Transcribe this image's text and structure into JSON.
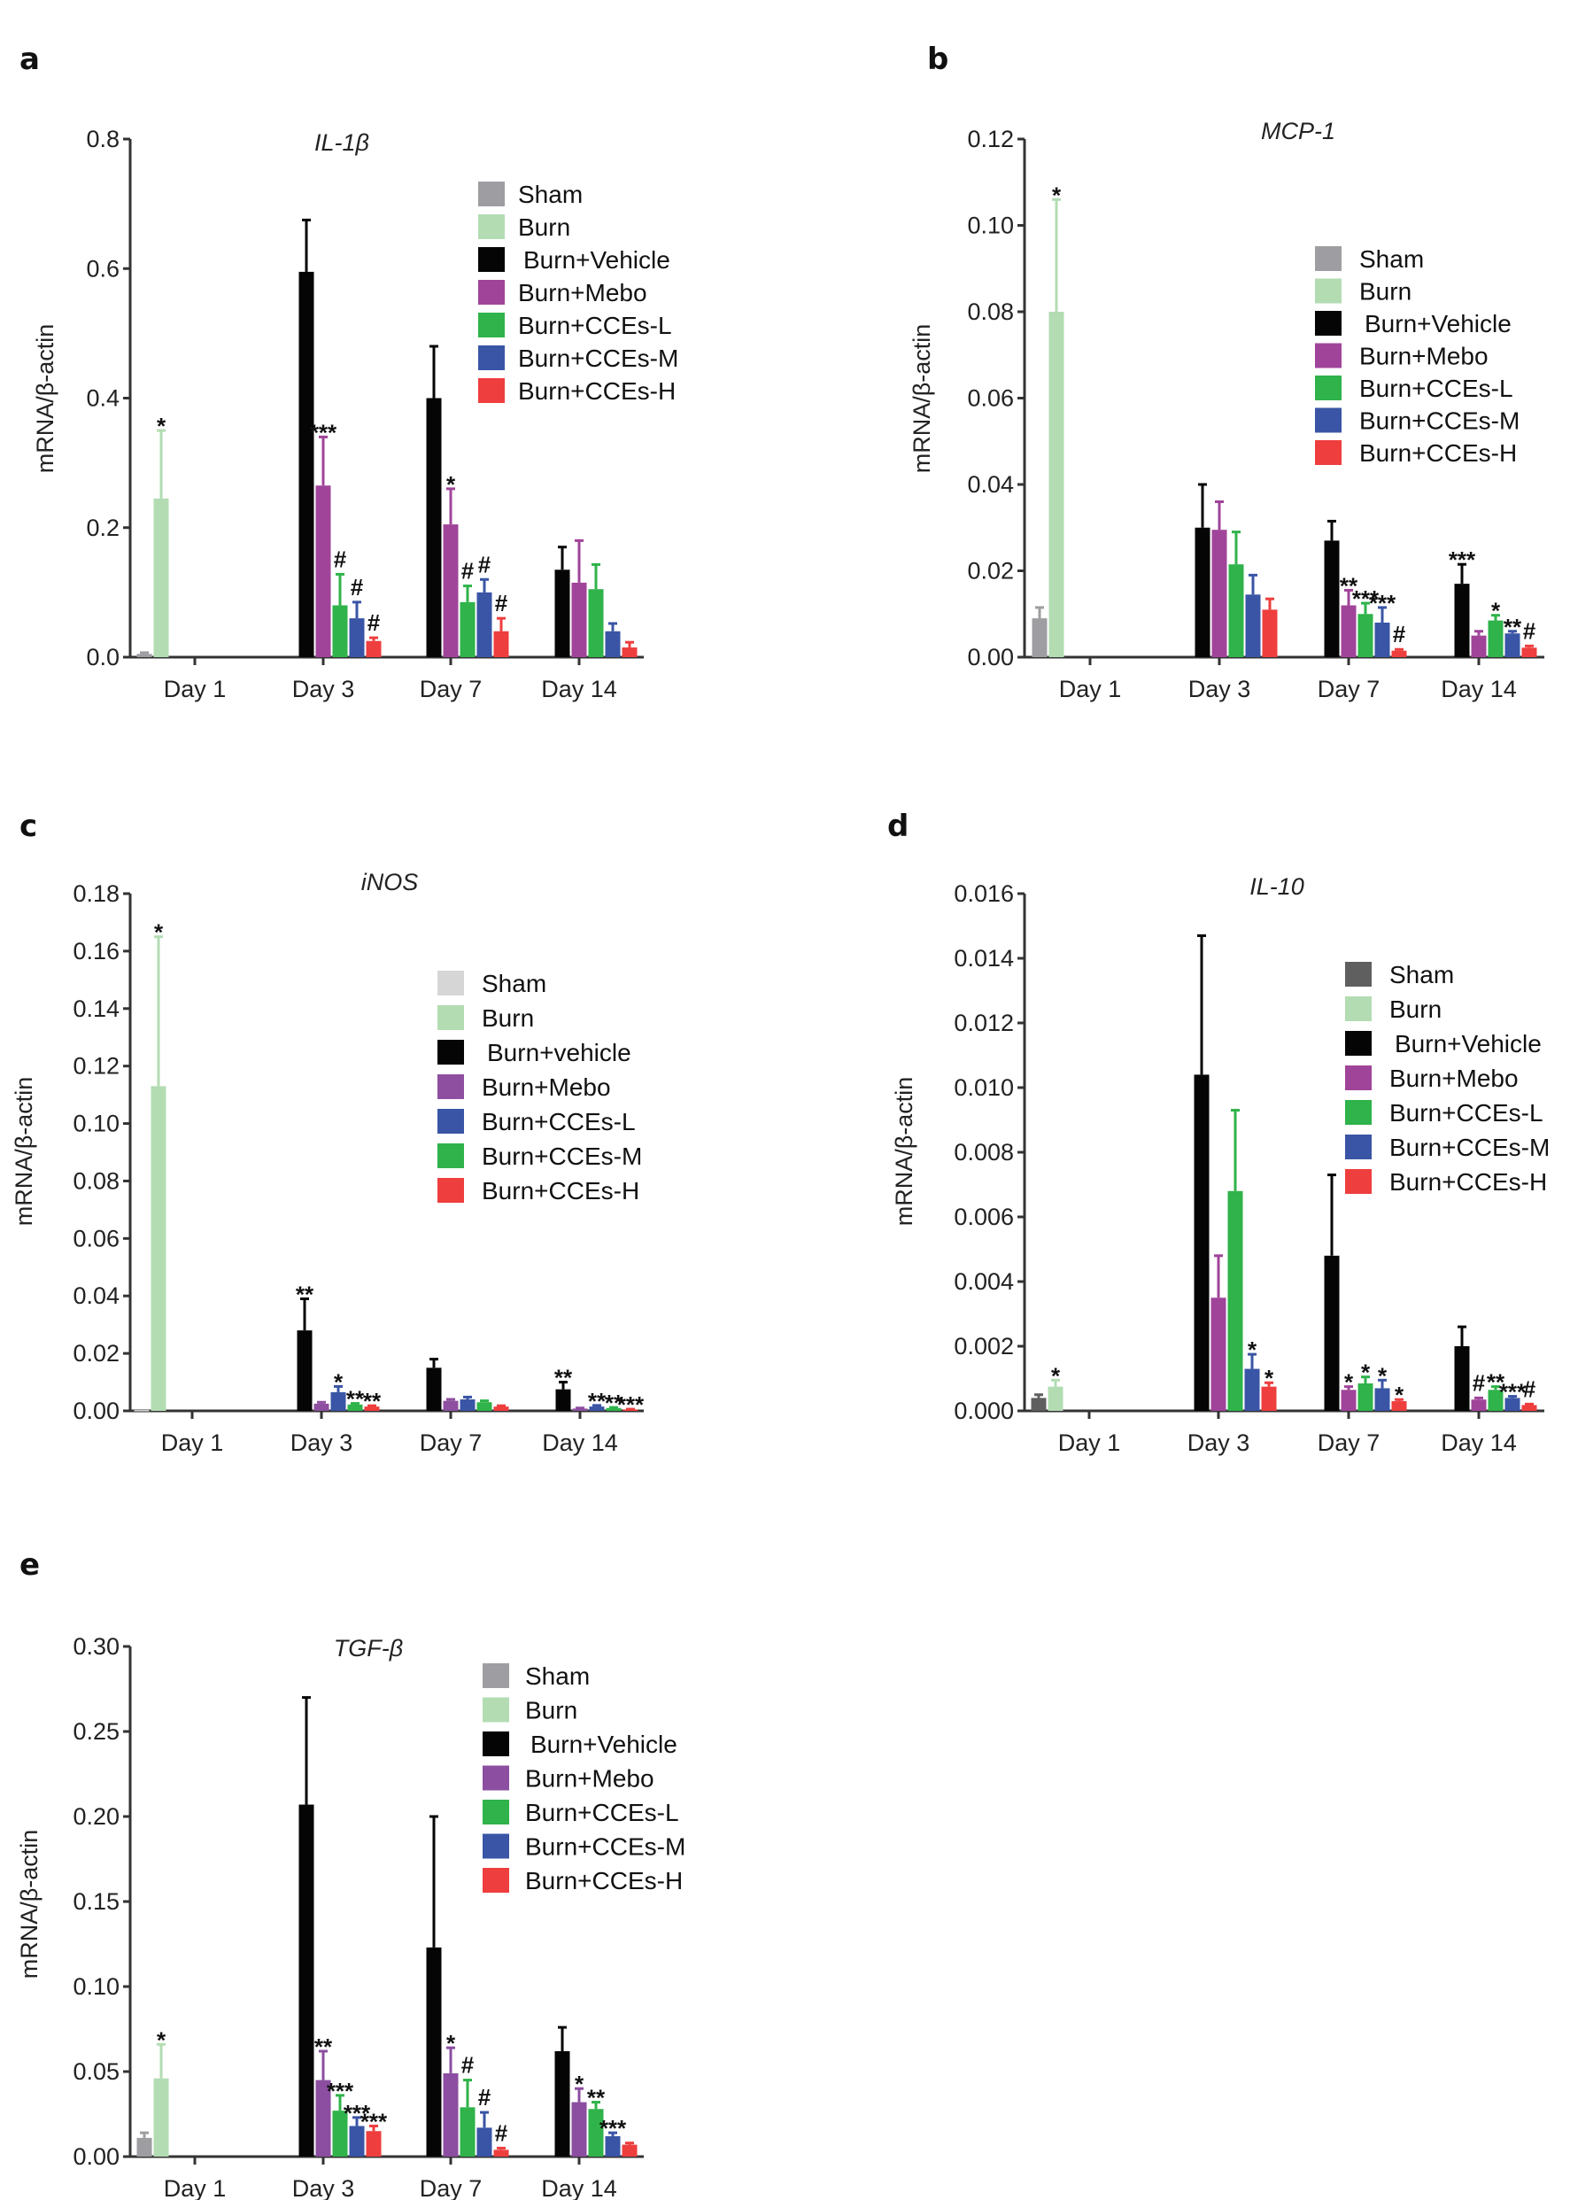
{
  "figure": {
    "panel_labels": [
      "a",
      "b",
      "c",
      "d",
      "e"
    ]
  },
  "chart_data": [
    {
      "id": "a",
      "type": "bar",
      "title": "IL-1β",
      "xlabel": "",
      "ylabel": "mRNA/β-actin",
      "ylim": [
        0,
        0.8
      ],
      "yticks": [
        0.0,
        0.2,
        0.4,
        0.6,
        0.8
      ],
      "ytick_labels": [
        "0.0",
        "0.2",
        "0.4",
        "0.6",
        "0.8"
      ],
      "categories": [
        "Day 1",
        "Day 3",
        "Day 7",
        "Day 14"
      ],
      "legend_position": "top-right",
      "series": [
        {
          "name": "Sham",
          "color": "#9e9ea2",
          "values": [
            0.005,
            null,
            null,
            null
          ],
          "errors": [
            0.002,
            null,
            null,
            null
          ],
          "annotations": [
            "",
            "",
            "",
            ""
          ]
        },
        {
          "name": "Burn",
          "color": "#b3dcb3",
          "values": [
            0.245,
            null,
            null,
            null
          ],
          "errors": [
            0.105,
            null,
            null,
            null
          ],
          "annotations": [
            "*",
            "",
            "",
            ""
          ]
        },
        {
          "name": "Burn+Vehicle",
          "color": "#050505",
          "values": [
            null,
            0.595,
            0.4,
            0.135
          ],
          "errors": [
            null,
            0.08,
            0.08,
            0.035
          ],
          "annotations": [
            "",
            "",
            "",
            ""
          ]
        },
        {
          "name": "Burn+Mebo",
          "color": "#a0449a",
          "values": [
            null,
            0.265,
            0.205,
            0.115
          ],
          "errors": [
            null,
            0.075,
            0.055,
            0.065
          ],
          "annotations": [
            "",
            "***",
            "*",
            ""
          ]
        },
        {
          "name": "Burn+CCEs-L",
          "color": "#2fb34a",
          "values": [
            null,
            0.08,
            0.085,
            0.105
          ],
          "errors": [
            null,
            0.048,
            0.025,
            0.038
          ],
          "annotations": [
            "",
            "#",
            "#",
            ""
          ]
        },
        {
          "name": "Burn+CCEs-M",
          "color": "#3a55a5",
          "values": [
            null,
            0.06,
            0.1,
            0.04
          ],
          "errors": [
            null,
            0.025,
            0.02,
            0.012
          ],
          "annotations": [
            "",
            "#",
            "#",
            ""
          ]
        },
        {
          "name": "Burn+CCEs-H",
          "color": "#ee3e3e",
          "values": [
            null,
            0.025,
            0.04,
            0.015
          ],
          "errors": [
            null,
            0.005,
            0.02,
            0.008
          ],
          "annotations": [
            "",
            "#",
            "#",
            ""
          ]
        }
      ]
    },
    {
      "id": "b",
      "type": "bar",
      "title": "MCP-1",
      "xlabel": "",
      "ylabel": "mRNA/β-actin",
      "ylim": [
        0,
        0.12
      ],
      "yticks": [
        0.0,
        0.02,
        0.04,
        0.06,
        0.08,
        0.1,
        0.12
      ],
      "ytick_labels": [
        "0.00",
        "0.02",
        "0.04",
        "0.06",
        "0.08",
        "0.10",
        "0.12"
      ],
      "categories": [
        "Day 1",
        "Day 3",
        "Day 7",
        "Day 14"
      ],
      "legend_position": "right",
      "series": [
        {
          "name": "Sham",
          "color": "#9e9ea2",
          "values": [
            0.009,
            null,
            null,
            null
          ],
          "errors": [
            0.0025,
            null,
            null,
            null
          ],
          "annotations": [
            "",
            "",
            "",
            ""
          ]
        },
        {
          "name": "Burn",
          "color": "#b3dcb3",
          "values": [
            0.08,
            null,
            null,
            null
          ],
          "errors": [
            0.026,
            null,
            null,
            null
          ],
          "annotations": [
            "*",
            "",
            "",
            ""
          ]
        },
        {
          "name": "Burn+Vehicle",
          "color": "#050505",
          "values": [
            null,
            0.03,
            0.027,
            0.017
          ],
          "errors": [
            null,
            0.01,
            0.0045,
            0.0045
          ],
          "annotations": [
            "",
            "",
            "",
            "***"
          ]
        },
        {
          "name": "Burn+Mebo",
          "color": "#a0449a",
          "values": [
            null,
            0.0295,
            0.012,
            0.005
          ],
          "errors": [
            null,
            0.0065,
            0.0035,
            0.001
          ],
          "annotations": [
            "",
            "",
            "**",
            ""
          ]
        },
        {
          "name": "Burn+CCEs-L",
          "color": "#2fb34a",
          "values": [
            null,
            0.0215,
            0.01,
            0.0085
          ],
          "errors": [
            null,
            0.0075,
            0.0025,
            0.0012
          ],
          "annotations": [
            "",
            "",
            "***",
            "*"
          ]
        },
        {
          "name": "Burn+CCEs-M",
          "color": "#3a55a5",
          "values": [
            null,
            0.0145,
            0.008,
            0.0055
          ],
          "errors": [
            null,
            0.0045,
            0.0035,
            0.0005
          ],
          "annotations": [
            "",
            "",
            "***",
            "**"
          ]
        },
        {
          "name": "Burn+CCEs-H",
          "color": "#ee3e3e",
          "values": [
            null,
            0.011,
            0.0015,
            0.0022
          ],
          "errors": [
            null,
            0.0025,
            0.0003,
            0.0004
          ],
          "annotations": [
            "",
            "",
            "#",
            "#"
          ]
        }
      ]
    },
    {
      "id": "c",
      "type": "bar",
      "title": "iNOS",
      "xlabel": "",
      "ylabel": "mRNA/β-actin",
      "ylim": [
        0,
        0.18
      ],
      "yticks": [
        0.0,
        0.02,
        0.04,
        0.06,
        0.08,
        0.1,
        0.12,
        0.14,
        0.16,
        0.18
      ],
      "ytick_labels": [
        "0.00",
        "0.02",
        "0.04",
        "0.06",
        "0.08",
        "0.10",
        "0.12",
        "0.14",
        "0.16",
        "0.18"
      ],
      "categories": [
        "Day 1",
        "Day 3",
        "Day 7",
        "Day 14"
      ],
      "legend_position": "top-right",
      "series": [
        {
          "name": "Sham",
          "color": "#d6d6d6",
          "values": [
            0.0003,
            null,
            null,
            null
          ],
          "errors": [
            0.0,
            null,
            null,
            null
          ],
          "annotations": [
            "",
            "",
            "",
            ""
          ]
        },
        {
          "name": "Burn",
          "color": "#b3dcb3",
          "values": [
            0.113,
            null,
            null,
            null
          ],
          "errors": [
            0.052,
            null,
            null,
            null
          ],
          "annotations": [
            "*",
            "",
            "",
            ""
          ]
        },
        {
          "name": "Burn+vehicle",
          "color": "#050505",
          "values": [
            null,
            0.028,
            0.015,
            0.0075
          ],
          "errors": [
            null,
            0.011,
            0.003,
            0.0025
          ],
          "annotations": [
            "",
            "**",
            "",
            "**"
          ]
        },
        {
          "name": "Burn+Mebo",
          "color": "#8e4fa0",
          "values": [
            null,
            0.0025,
            0.0035,
            0.0008
          ],
          "errors": [
            null,
            0.0005,
            0.0005,
            0.0002
          ],
          "annotations": [
            "",
            "",
            "",
            ""
          ]
        },
        {
          "name": "Burn+CCEs-L",
          "color": "#3a55a5",
          "values": [
            null,
            0.0065,
            0.004,
            0.0015
          ],
          "errors": [
            null,
            0.002,
            0.0008,
            0.0004
          ],
          "annotations": [
            "",
            "*",
            "",
            "**"
          ]
        },
        {
          "name": "Burn+CCEs-M",
          "color": "#2fb34a",
          "values": [
            null,
            0.0022,
            0.003,
            0.001
          ],
          "errors": [
            null,
            0.0004,
            0.0005,
            0.0002
          ],
          "annotations": [
            "",
            "**",
            "",
            "**"
          ]
        },
        {
          "name": "Burn+CCEs-H",
          "color": "#ee3e3e",
          "values": [
            null,
            0.0015,
            0.0015,
            0.0005
          ],
          "errors": [
            null,
            0.0003,
            0.0003,
            0.0001
          ],
          "annotations": [
            "",
            "**",
            "",
            "***"
          ]
        }
      ]
    },
    {
      "id": "d",
      "type": "bar",
      "title": "IL-10",
      "xlabel": "",
      "ylabel": "mRNA/β-actin",
      "ylim": [
        0,
        0.016
      ],
      "yticks": [
        0.0,
        0.002,
        0.004,
        0.006,
        0.008,
        0.01,
        0.012,
        0.014,
        0.016
      ],
      "ytick_labels": [
        "0.000",
        "0.002",
        "0.004",
        "0.006",
        "0.008",
        "0.010",
        "0.012",
        "0.014",
        "0.016"
      ],
      "categories": [
        "Day 1",
        "Day 3",
        "Day 7",
        "Day 14"
      ],
      "legend_position": "top-right",
      "series": [
        {
          "name": "Sham",
          "color": "#5f5f5f",
          "values": [
            0.0004,
            null,
            null,
            null
          ],
          "errors": [
            0.0001,
            null,
            null,
            null
          ],
          "annotations": [
            "",
            "",
            "",
            ""
          ]
        },
        {
          "name": "Burn",
          "color": "#b3dcb3",
          "values": [
            0.00075,
            null,
            null,
            null
          ],
          "errors": [
            0.0002,
            null,
            null,
            null
          ],
          "annotations": [
            "*",
            "",
            "",
            ""
          ]
        },
        {
          "name": "Burn+Vehicle",
          "color": "#050505",
          "values": [
            null,
            0.0104,
            0.0048,
            0.002
          ],
          "errors": [
            null,
            0.0043,
            0.0025,
            0.0006
          ],
          "annotations": [
            "",
            "",
            "",
            ""
          ]
        },
        {
          "name": "Burn+Mebo",
          "color": "#a0449a",
          "values": [
            null,
            0.0035,
            0.00065,
            0.00035
          ],
          "errors": [
            null,
            0.0013,
            0.0001,
            5e-05
          ],
          "annotations": [
            "",
            "",
            "*",
            "#"
          ]
        },
        {
          "name": "Burn+CCEs-L",
          "color": "#2fb34a",
          "values": [
            null,
            0.0068,
            0.00085,
            0.00065
          ],
          "errors": [
            null,
            0.0025,
            0.0002,
            0.0001
          ],
          "annotations": [
            "",
            "",
            "*",
            "**"
          ]
        },
        {
          "name": "Burn+CCEs-M",
          "color": "#3a55a5",
          "values": [
            null,
            0.0013,
            0.0007,
            0.0004
          ],
          "errors": [
            null,
            0.00045,
            0.00025,
            5e-05
          ],
          "annotations": [
            "",
            "*",
            "*",
            "***"
          ]
        },
        {
          "name": "Burn+CCEs-H",
          "color": "#ee3e3e",
          "values": [
            null,
            0.00075,
            0.0003,
            0.00018
          ],
          "errors": [
            null,
            0.00012,
            5e-05,
            3e-05
          ],
          "annotations": [
            "",
            "*",
            "*",
            "#"
          ]
        }
      ]
    },
    {
      "id": "e",
      "type": "bar",
      "title": "TGF-β",
      "xlabel": "",
      "ylabel": "mRNA/β-actin",
      "ylim": [
        0,
        0.3
      ],
      "yticks": [
        0.0,
        0.05,
        0.1,
        0.15,
        0.2,
        0.25,
        0.3
      ],
      "ytick_labels": [
        "0.00",
        "0.05",
        "0.10",
        "0.15",
        "0.20",
        "0.25",
        "0.30"
      ],
      "categories": [
        "Day 1",
        "Day 3",
        "Day 7",
        "Day 14"
      ],
      "legend_position": "top-right",
      "series": [
        {
          "name": "Sham",
          "color": "#9e9ea2",
          "values": [
            0.011,
            null,
            null,
            null
          ],
          "errors": [
            0.003,
            null,
            null,
            null
          ],
          "annotations": [
            "",
            "",
            "",
            ""
          ]
        },
        {
          "name": "Burn",
          "color": "#b3dcb3",
          "values": [
            0.046,
            null,
            null,
            null
          ],
          "errors": [
            0.02,
            null,
            null,
            null
          ],
          "annotations": [
            "*",
            "",
            "",
            ""
          ]
        },
        {
          "name": "Burn+Vehicle",
          "color": "#050505",
          "values": [
            null,
            0.207,
            0.123,
            0.062
          ],
          "errors": [
            null,
            0.063,
            0.077,
            0.014
          ],
          "annotations": [
            "",
            "",
            "",
            ""
          ]
        },
        {
          "name": "Burn+Mebo",
          "color": "#8b4ea0",
          "values": [
            null,
            0.045,
            0.049,
            0.032
          ],
          "errors": [
            null,
            0.017,
            0.015,
            0.008
          ],
          "annotations": [
            "",
            "**",
            "*",
            "*"
          ]
        },
        {
          "name": "Burn+CCEs-L",
          "color": "#2fb34a",
          "values": [
            null,
            0.027,
            0.029,
            0.028
          ],
          "errors": [
            null,
            0.009,
            0.016,
            0.004
          ],
          "annotations": [
            "",
            "***",
            "#",
            "**"
          ]
        },
        {
          "name": "Burn+CCEs-M",
          "color": "#3a55a5",
          "values": [
            null,
            0.018,
            0.017,
            0.012
          ],
          "errors": [
            null,
            0.005,
            0.009,
            0.002
          ],
          "annotations": [
            "",
            "***",
            "#",
            "***"
          ]
        },
        {
          "name": "Burn+CCEs-H",
          "color": "#ee3e3e",
          "values": [
            null,
            0.015,
            0.004,
            0.007
          ],
          "errors": [
            null,
            0.003,
            0.001,
            0.001
          ],
          "annotations": [
            "",
            "***",
            "#",
            ""
          ]
        }
      ]
    }
  ]
}
